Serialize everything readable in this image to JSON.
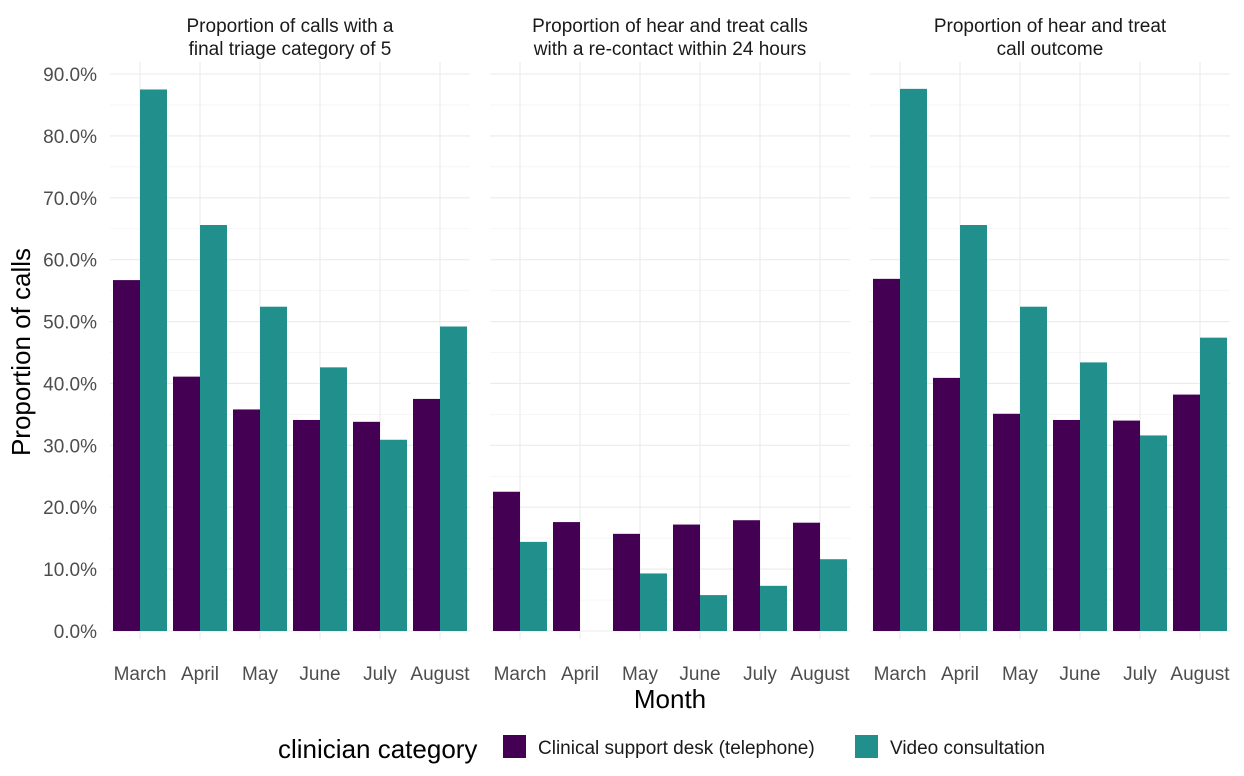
{
  "chart_data": {
    "type": "bar",
    "xlabel": "Month",
    "ylabel": "Proportion of calls",
    "ylim": [
      0,
      90
    ],
    "yticks": [
      "0.0%",
      "10.0%",
      "20.0%",
      "30.0%",
      "40.0%",
      "50.0%",
      "60.0%",
      "70.0%",
      "80.0%",
      "90.0%"
    ],
    "grid": true,
    "categories": [
      "March",
      "April",
      "May",
      "June",
      "July",
      "August"
    ],
    "legend": {
      "title": "clinician category",
      "placement": "bottom",
      "entries": [
        {
          "name": "Clinical support desk (telephone)",
          "color": "#440154"
        },
        {
          "name": "Video consultation",
          "color": "#21908C"
        }
      ]
    },
    "facets": [
      {
        "title": [
          "Proportion of calls with a",
          "final triage category of 5"
        ],
        "series": [
          {
            "name": "Clinical support desk (telephone)",
            "values": [
              56.7,
              41.1,
              35.8,
              34.1,
              33.8,
              37.5
            ]
          },
          {
            "name": "Video consultation",
            "values": [
              87.5,
              65.6,
              52.4,
              42.6,
              30.9,
              49.2
            ]
          }
        ]
      },
      {
        "title": [
          "Proportion of hear and treat calls",
          "with a re-contact within 24 hours"
        ],
        "series": [
          {
            "name": "Clinical support desk (telephone)",
            "values": [
              22.5,
              17.6,
              15.7,
              17.2,
              17.9,
              17.5
            ]
          },
          {
            "name": "Video consultation",
            "values": [
              14.4,
              0,
              9.3,
              5.8,
              7.3,
              11.6
            ]
          }
        ]
      },
      {
        "title": [
          "Proportion of hear and treat",
          "call outcome"
        ],
        "series": [
          {
            "name": "Clinical support desk (telephone)",
            "values": [
              56.9,
              40.9,
              35.1,
              34.1,
              34.0,
              38.2
            ]
          },
          {
            "name": "Video consultation",
            "values": [
              87.6,
              65.6,
              52.4,
              43.4,
              31.6,
              47.4
            ]
          }
        ]
      }
    ]
  }
}
